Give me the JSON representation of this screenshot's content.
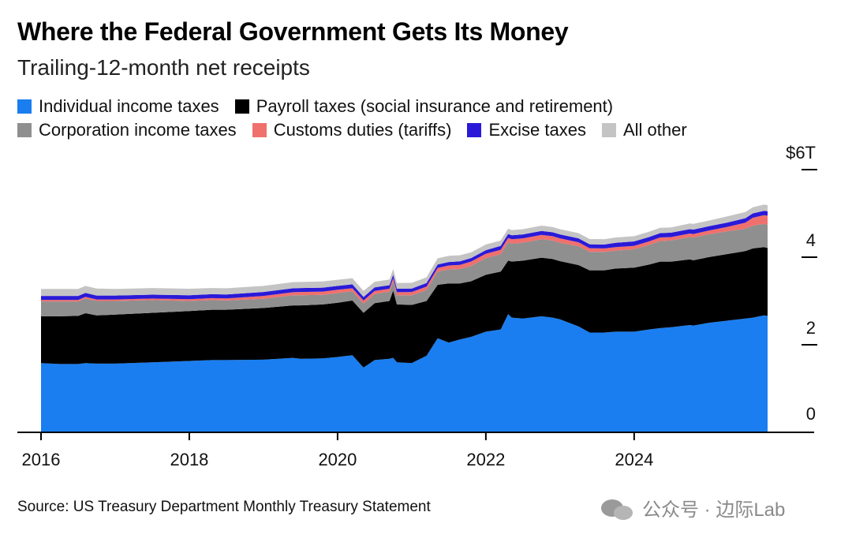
{
  "title": "Where the Federal Government Gets Its Money",
  "subtitle": "Trailing-12-month net receipts",
  "source": "Source: US Treasury Department Monthly Treasury Statement",
  "watermark": "公众号 · 边际Lab",
  "legend_rows": [
    [
      {
        "label": "Individual income taxes",
        "color": "#1a7ef0"
      },
      {
        "label": "Payroll taxes (social insurance and retirement)",
        "color": "#000000"
      }
    ],
    [
      {
        "label": "Corporation income taxes",
        "color": "#8f8f8f"
      },
      {
        "label": "Customs duties (tariffs)",
        "color": "#f0706d"
      },
      {
        "label": "Excise taxes",
        "color": "#2a1ad8"
      },
      {
        "label": "All other",
        "color": "#c4c4c4"
      }
    ]
  ],
  "chart_data": {
    "type": "area",
    "stacked": true,
    "x": [
      2016.0,
      2016.25,
      2016.5,
      2016.6,
      2016.75,
      2017.0,
      2017.5,
      2018.0,
      2018.3,
      2018.5,
      2019.0,
      2019.4,
      2019.5,
      2019.8,
      2020.0,
      2020.2,
      2020.35,
      2020.5,
      2020.7,
      2020.75,
      2020.8,
      2021.0,
      2021.2,
      2021.35,
      2021.5,
      2021.65,
      2021.8,
      2022.0,
      2022.2,
      2022.3,
      2022.35,
      2022.5,
      2022.75,
      2022.9,
      2023.0,
      2023.25,
      2023.4,
      2023.6,
      2023.75,
      2024.0,
      2024.2,
      2024.35,
      2024.5,
      2024.75,
      2024.8,
      2025.0,
      2025.25,
      2025.5,
      2025.6,
      2025.75,
      2025.8
    ],
    "series": [
      {
        "name": "Individual income taxes",
        "color": "#1a7ef0",
        "values": [
          1.58,
          1.56,
          1.56,
          1.58,
          1.57,
          1.57,
          1.6,
          1.63,
          1.65,
          1.65,
          1.66,
          1.7,
          1.68,
          1.69,
          1.72,
          1.76,
          1.48,
          1.65,
          1.68,
          1.7,
          1.6,
          1.58,
          1.75,
          2.15,
          2.05,
          2.12,
          2.18,
          2.3,
          2.35,
          2.7,
          2.62,
          2.6,
          2.65,
          2.62,
          2.58,
          2.42,
          2.28,
          2.28,
          2.3,
          2.3,
          2.35,
          2.38,
          2.4,
          2.45,
          2.44,
          2.5,
          2.55,
          2.6,
          2.62,
          2.67,
          2.66
        ]
      },
      {
        "name": "Payroll taxes (social insurance and retirement)",
        "color": "#000000",
        "values": [
          1.07,
          1.09,
          1.1,
          1.14,
          1.1,
          1.12,
          1.13,
          1.14,
          1.15,
          1.15,
          1.18,
          1.2,
          1.22,
          1.23,
          1.24,
          1.25,
          1.25,
          1.3,
          1.32,
          1.54,
          1.32,
          1.33,
          1.25,
          1.22,
          1.35,
          1.28,
          1.27,
          1.3,
          1.32,
          1.22,
          1.28,
          1.32,
          1.34,
          1.34,
          1.33,
          1.4,
          1.42,
          1.42,
          1.44,
          1.46,
          1.48,
          1.52,
          1.5,
          1.5,
          1.49,
          1.5,
          1.52,
          1.54,
          1.58,
          1.56,
          1.55
        ]
      },
      {
        "name": "Corporation income taxes",
        "color": "#8f8f8f",
        "values": [
          0.34,
          0.34,
          0.33,
          0.34,
          0.33,
          0.31,
          0.29,
          0.23,
          0.22,
          0.21,
          0.21,
          0.23,
          0.23,
          0.22,
          0.22,
          0.21,
          0.21,
          0.21,
          0.21,
          0.21,
          0.21,
          0.22,
          0.25,
          0.3,
          0.32,
          0.33,
          0.35,
          0.38,
          0.4,
          0.42,
          0.41,
          0.41,
          0.42,
          0.42,
          0.42,
          0.43,
          0.42,
          0.42,
          0.41,
          0.42,
          0.45,
          0.47,
          0.48,
          0.51,
          0.52,
          0.52,
          0.52,
          0.51,
          0.52,
          0.53,
          0.53
        ]
      },
      {
        "name": "Customs duties (tariffs)",
        "color": "#f0706d",
        "values": [
          0.035,
          0.035,
          0.035,
          0.035,
          0.035,
          0.035,
          0.035,
          0.04,
          0.045,
          0.05,
          0.065,
          0.07,
          0.075,
          0.075,
          0.075,
          0.07,
          0.07,
          0.07,
          0.07,
          0.07,
          0.07,
          0.075,
          0.08,
          0.085,
          0.09,
          0.095,
          0.1,
          0.1,
          0.1,
          0.1,
          0.1,
          0.1,
          0.1,
          0.1,
          0.1,
          0.09,
          0.085,
          0.08,
          0.08,
          0.08,
          0.08,
          0.08,
          0.08,
          0.08,
          0.08,
          0.085,
          0.1,
          0.14,
          0.18,
          0.2,
          0.21
        ]
      },
      {
        "name": "Excise taxes",
        "color": "#2a1ad8",
        "values": [
          0.09,
          0.09,
          0.09,
          0.09,
          0.09,
          0.09,
          0.09,
          0.09,
          0.09,
          0.09,
          0.09,
          0.09,
          0.09,
          0.09,
          0.09,
          0.09,
          0.08,
          0.08,
          0.08,
          0.08,
          0.08,
          0.08,
          0.08,
          0.08,
          0.08,
          0.08,
          0.08,
          0.08,
          0.09,
          0.09,
          0.09,
          0.09,
          0.09,
          0.09,
          0.09,
          0.09,
          0.09,
          0.09,
          0.1,
          0.1,
          0.1,
          0.1,
          0.1,
          0.1,
          0.1,
          0.1,
          0.1,
          0.1,
          0.1,
          0.1,
          0.1
        ]
      },
      {
        "name": "All other",
        "color": "#c4c4c4",
        "values": [
          0.16,
          0.16,
          0.16,
          0.16,
          0.16,
          0.15,
          0.15,
          0.15,
          0.14,
          0.14,
          0.14,
          0.14,
          0.14,
          0.14,
          0.14,
          0.14,
          0.14,
          0.13,
          0.13,
          0.13,
          0.13,
          0.13,
          0.13,
          0.14,
          0.14,
          0.14,
          0.13,
          0.13,
          0.12,
          0.12,
          0.12,
          0.12,
          0.12,
          0.12,
          0.12,
          0.12,
          0.12,
          0.12,
          0.12,
          0.12,
          0.12,
          0.12,
          0.12,
          0.13,
          0.13,
          0.13,
          0.14,
          0.14,
          0.14,
          0.14,
          0.14
        ]
      }
    ],
    "x_ticks": [
      2016,
      2018,
      2020,
      2022,
      2024
    ],
    "x_tick_labels": [
      "2016",
      "2018",
      "2020",
      "2022",
      "2024"
    ],
    "xlim": [
      2016,
      2025.8
    ],
    "y_ticks": [
      0,
      2,
      4,
      6
    ],
    "y_tick_labels": [
      "0",
      "2",
      "4",
      "$6T"
    ],
    "ylim": [
      0,
      6
    ],
    "y_axis_position": "right",
    "grid": false,
    "legend_position": "top-left"
  }
}
